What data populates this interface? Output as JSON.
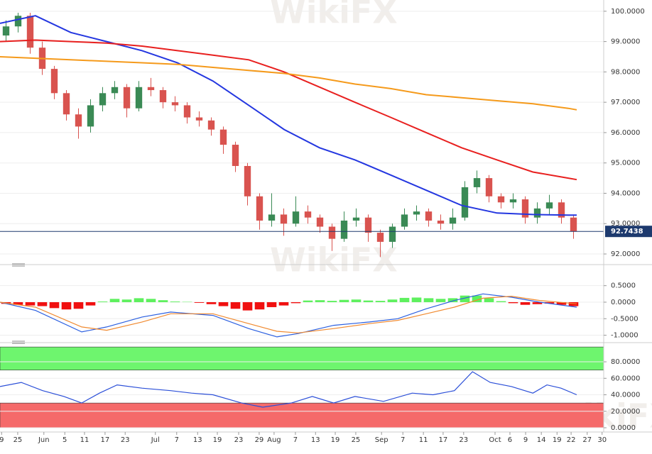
{
  "watermark": "WikiFX",
  "chart_data": [
    {
      "type": "candlestick",
      "up_color": "#3a8a55",
      "down_color": "#d9534f",
      "grid": true,
      "ylim": [
        91.72,
        100.37
      ],
      "yticks": [
        {
          "value": 92,
          "label": "92.0000"
        },
        {
          "value": 93,
          "label": "93.0000"
        },
        {
          "value": 94,
          "label": "94.0000"
        },
        {
          "value": 95,
          "label": "95.0000"
        },
        {
          "value": 96,
          "label": "96.0000"
        },
        {
          "value": 97,
          "label": "97.0000"
        },
        {
          "value": 98,
          "label": "98.0000"
        },
        {
          "value": 99,
          "label": "99.0000"
        },
        {
          "value": 100,
          "label": "100.0000"
        }
      ],
      "xlim": [
        0,
        150
      ],
      "x": [
        1.5,
        4.5,
        7.5,
        10.5,
        13.5,
        16.5,
        19.5,
        22.5,
        25.5,
        28.5,
        31.5,
        34.5,
        37.5,
        40.5,
        43.5,
        46.5,
        49.5,
        52.5,
        55.5,
        58.5,
        61.5,
        64.5,
        67.5,
        70.5,
        73.5,
        76.5,
        79.5,
        82.5,
        85.5,
        88.5,
        91.5,
        94.5,
        97.5,
        100.5,
        103.5,
        106.5,
        109.5,
        112.5,
        115.5,
        118.5,
        121.5,
        124.5,
        127.5,
        130.5,
        133.5,
        136.5,
        139.5,
        142.5
      ],
      "ohlc": [
        [
          99.2,
          99.7,
          99.0,
          99.5
        ],
        [
          99.5,
          99.95,
          99.3,
          99.85
        ],
        [
          99.85,
          99.95,
          98.6,
          98.8
        ],
        [
          98.8,
          99.0,
          97.9,
          98.1
        ],
        [
          98.1,
          98.2,
          97.1,
          97.3
        ],
        [
          97.3,
          97.4,
          96.4,
          96.6
        ],
        [
          96.6,
          96.8,
          95.8,
          96.2
        ],
        [
          96.2,
          97.1,
          96.0,
          96.9
        ],
        [
          96.9,
          97.5,
          96.7,
          97.3
        ],
        [
          97.3,
          97.7,
          97.1,
          97.5
        ],
        [
          97.5,
          97.6,
          96.5,
          96.8
        ],
        [
          96.8,
          97.7,
          96.7,
          97.5
        ],
        [
          97.5,
          97.8,
          97.2,
          97.4
        ],
        [
          97.4,
          97.5,
          96.8,
          97.0
        ],
        [
          97.0,
          97.2,
          96.7,
          96.9
        ],
        [
          96.9,
          97.0,
          96.3,
          96.5
        ],
        [
          96.5,
          96.7,
          96.2,
          96.4
        ],
        [
          96.4,
          96.5,
          95.9,
          96.1
        ],
        [
          96.1,
          96.2,
          95.3,
          95.6
        ],
        [
          95.6,
          95.7,
          94.7,
          94.9
        ],
        [
          94.9,
          95.0,
          93.6,
          93.9
        ],
        [
          93.9,
          94.0,
          92.8,
          93.1
        ],
        [
          93.1,
          94.0,
          92.9,
          93.3
        ],
        [
          93.3,
          93.5,
          92.6,
          93.0
        ],
        [
          93.0,
          93.9,
          92.9,
          93.4
        ],
        [
          93.4,
          93.6,
          93.0,
          93.2
        ],
        [
          93.2,
          93.3,
          92.7,
          92.9
        ],
        [
          92.9,
          93.0,
          92.1,
          92.5
        ],
        [
          92.5,
          93.4,
          92.4,
          93.1
        ],
        [
          93.1,
          93.5,
          92.9,
          93.2
        ],
        [
          93.2,
          93.3,
          92.4,
          92.7
        ],
        [
          92.7,
          92.8,
          91.9,
          92.4
        ],
        [
          92.4,
          93.0,
          92.2,
          92.9
        ],
        [
          92.9,
          93.5,
          92.8,
          93.3
        ],
        [
          93.3,
          93.6,
          93.1,
          93.4
        ],
        [
          93.4,
          93.5,
          92.9,
          93.1
        ],
        [
          93.1,
          93.3,
          92.8,
          93.0
        ],
        [
          93.0,
          93.5,
          92.8,
          93.2
        ],
        [
          93.2,
          94.4,
          93.1,
          94.2
        ],
        [
          94.2,
          94.75,
          94.0,
          94.5
        ],
        [
          94.5,
          94.6,
          93.7,
          93.9
        ],
        [
          93.9,
          94.0,
          93.5,
          93.7
        ],
        [
          93.7,
          94.0,
          93.5,
          93.8
        ],
        [
          93.8,
          93.9,
          93.0,
          93.2
        ],
        [
          93.2,
          93.7,
          93.0,
          93.5
        ],
        [
          93.5,
          93.95,
          93.3,
          93.7
        ],
        [
          93.7,
          93.8,
          93.0,
          93.2
        ],
        [
          93.2,
          93.3,
          92.5,
          92.74
        ]
      ],
      "lines": [
        {
          "color": "#2437e0",
          "x": [
            0,
            8.8,
            17.6,
            26.5,
            35.3,
            44.1,
            52.9,
            61.8,
            70.6,
            79.4,
            88.2,
            97.1,
            105.9,
            114.7,
            123.5,
            132.4,
            141.2,
            143.3
          ],
          "values": [
            99.6,
            99.85,
            99.3,
            99.0,
            98.7,
            98.3,
            97.7,
            96.9,
            96.1,
            95.5,
            95.1,
            94.6,
            94.1,
            93.6,
            93.35,
            93.3,
            93.28,
            93.28
          ]
        },
        {
          "color": "#e8201f",
          "x": [
            0,
            8.8,
            17.6,
            26.5,
            35.3,
            44.1,
            52.9,
            61.8,
            70.6,
            79.4,
            88.2,
            97.1,
            105.9,
            114.7,
            123.5,
            132.4,
            141.2,
            143.3
          ],
          "values": [
            99.0,
            99.05,
            99.0,
            98.95,
            98.85,
            98.7,
            98.55,
            98.4,
            98.0,
            97.5,
            97.0,
            96.5,
            96.0,
            95.5,
            95.1,
            94.7,
            94.5,
            94.45
          ]
        },
        {
          "color": "#f59a1b",
          "x": [
            0,
            8.8,
            17.6,
            26.5,
            35.3,
            44.1,
            52.9,
            61.8,
            70.6,
            79.4,
            88.2,
            97.1,
            105.9,
            114.7,
            123.5,
            132.4,
            141.2,
            143.3
          ],
          "values": [
            98.5,
            98.45,
            98.4,
            98.35,
            98.3,
            98.25,
            98.15,
            98.05,
            97.95,
            97.8,
            97.6,
            97.45,
            97.25,
            97.15,
            97.05,
            96.95,
            96.8,
            96.75
          ]
        }
      ],
      "last_price": 92.7438,
      "last_price_color": "#1d3a6e"
    },
    {
      "type": "macd",
      "grid": true,
      "ylim": [
        -1.16,
        1.03
      ],
      "xlim": [
        0,
        150
      ],
      "yticks": [
        {
          "value": -1,
          "label": "-1.0000"
        },
        {
          "value": -0.5,
          "label": "-0.5000"
        },
        {
          "value": 0,
          "label": "0.0000"
        },
        {
          "value": 0.5,
          "label": "0.5000"
        }
      ],
      "positive_color": "#5ef05e",
      "negative_color": "#f01010",
      "x": [
        1.5,
        4.5,
        7.5,
        10.5,
        13.5,
        16.5,
        19.5,
        22.5,
        25.5,
        28.5,
        31.5,
        34.5,
        37.5,
        40.5,
        43.5,
        46.5,
        49.5,
        52.5,
        55.5,
        58.5,
        61.5,
        64.5,
        67.5,
        70.5,
        73.5,
        76.5,
        79.5,
        82.5,
        85.5,
        88.5,
        91.5,
        94.5,
        97.5,
        100.5,
        103.5,
        106.5,
        109.5,
        112.5,
        115.5,
        118.5,
        121.5,
        124.5,
        127.5,
        130.5,
        133.5,
        136.5,
        139.5,
        142.5
      ],
      "histogram": [
        -0.05,
        -0.08,
        -0.1,
        -0.12,
        -0.18,
        -0.22,
        -0.2,
        -0.1,
        0.02,
        0.1,
        0.08,
        0.12,
        0.1,
        0.06,
        0.02,
        0.01,
        -0.02,
        -0.06,
        -0.12,
        -0.2,
        -0.25,
        -0.22,
        -0.15,
        -0.1,
        -0.03,
        0.05,
        0.06,
        0.04,
        0.07,
        0.08,
        0.05,
        0.04,
        0.08,
        0.13,
        0.14,
        0.12,
        0.1,
        0.12,
        0.2,
        0.2,
        0.12,
        0.03,
        -0.03,
        -0.08,
        -0.06,
        -0.04,
        -0.08,
        -0.12
      ],
      "lines": [
        {
          "color": "#2b5fe0",
          "x": [
            0,
            8.8,
            20.3,
            26.5,
            35.3,
            42.4,
            52.9,
            61.8,
            68.8,
            74.1,
            82.9,
            91.8,
            98.8,
            105.9,
            112.9,
            120,
            127.1,
            134.1,
            143.3
          ],
          "values": [
            0,
            -0.25,
            -0.9,
            -0.75,
            -0.45,
            -0.3,
            -0.4,
            -0.8,
            -1.05,
            -0.95,
            -0.7,
            -0.6,
            -0.5,
            -0.2,
            0.05,
            0.25,
            0.15,
            0,
            -0.15
          ]
        },
        {
          "color": "#f08a30",
          "x": [
            0,
            8.8,
            20.3,
            26.5,
            35.3,
            42.4,
            52.9,
            61.8,
            68.8,
            74.1,
            82.9,
            91.8,
            98.8,
            105.9,
            112.9,
            120,
            127.1,
            134.1,
            143.3
          ],
          "values": [
            0,
            -0.15,
            -0.75,
            -0.85,
            -0.6,
            -0.35,
            -0.35,
            -0.65,
            -0.88,
            -0.93,
            -0.8,
            -0.65,
            -0.55,
            -0.35,
            -0.15,
            0.12,
            0.18,
            0.05,
            -0.05
          ]
        }
      ]
    },
    {
      "type": "rsi",
      "grid": true,
      "ylim": [
        -4.3,
        100.7
      ],
      "xlim": [
        0,
        150
      ],
      "yticks": [
        {
          "value": 0,
          "label": "0.0000"
        },
        {
          "value": 20,
          "label": "20.0000"
        },
        {
          "value": 40,
          "label": "40.0000"
        },
        {
          "value": 60,
          "label": "60.0000"
        },
        {
          "value": 80,
          "label": "80.0000"
        }
      ],
      "bands": [
        {
          "from": 70,
          "to": 98,
          "color": "#6ef56e"
        },
        {
          "from": 0,
          "to": 30,
          "color": "#f56a6a"
        }
      ],
      "lines": [
        {
          "color": "#2b4fd8",
          "x": [
            0,
            5.3,
            10.6,
            15.9,
            20.3,
            24.7,
            29.1,
            35.3,
            42.4,
            47.6,
            52.9,
            60,
            65.3,
            72.4,
            77.6,
            82.9,
            88.2,
            95.3,
            102.4,
            107.6,
            112.9,
            117.4,
            121.8,
            127.1,
            132.4,
            135.9,
            139.4,
            143.3
          ],
          "values": [
            50,
            55,
            45,
            38,
            30,
            42,
            52,
            48,
            45,
            42,
            40,
            30,
            25,
            30,
            38,
            30,
            38,
            32,
            42,
            40,
            45,
            68,
            55,
            50,
            42,
            52,
            48,
            40
          ]
        }
      ],
      "xticks": [
        {
          "value": 0.4,
          "label": "9"
        },
        {
          "value": 4.4,
          "label": "25"
        },
        {
          "value": 10.9,
          "label": "Jun"
        },
        {
          "value": 16.1,
          "label": "5"
        },
        {
          "value": 21,
          "label": "11"
        },
        {
          "value": 26.1,
          "label": "17"
        },
        {
          "value": 31.1,
          "label": "23"
        },
        {
          "value": 38.6,
          "label": "Jul"
        },
        {
          "value": 43.9,
          "label": "7"
        },
        {
          "value": 49.1,
          "label": "13"
        },
        {
          "value": 54,
          "label": "19"
        },
        {
          "value": 59.3,
          "label": "23"
        },
        {
          "value": 64.4,
          "label": "29"
        },
        {
          "value": 68.1,
          "label": "Aug"
        },
        {
          "value": 73.4,
          "label": "7"
        },
        {
          "value": 78.4,
          "label": "13"
        },
        {
          "value": 83.3,
          "label": "19"
        },
        {
          "value": 88.4,
          "label": "25"
        },
        {
          "value": 94.8,
          "label": "Sep"
        },
        {
          "value": 100.1,
          "label": "7"
        },
        {
          "value": 105.2,
          "label": "11"
        },
        {
          "value": 110.1,
          "label": "17"
        },
        {
          "value": 115.2,
          "label": "23"
        },
        {
          "value": 123,
          "label": "Oct"
        },
        {
          "value": 126.7,
          "label": "6"
        },
        {
          "value": 130.6,
          "label": "9"
        },
        {
          "value": 134.5,
          "label": "14"
        },
        {
          "value": 138.4,
          "label": "19"
        },
        {
          "value": 141.9,
          "label": "22"
        },
        {
          "value": 145.9,
          "label": "27"
        },
        {
          "value": 149.6,
          "label": "30"
        }
      ]
    }
  ]
}
